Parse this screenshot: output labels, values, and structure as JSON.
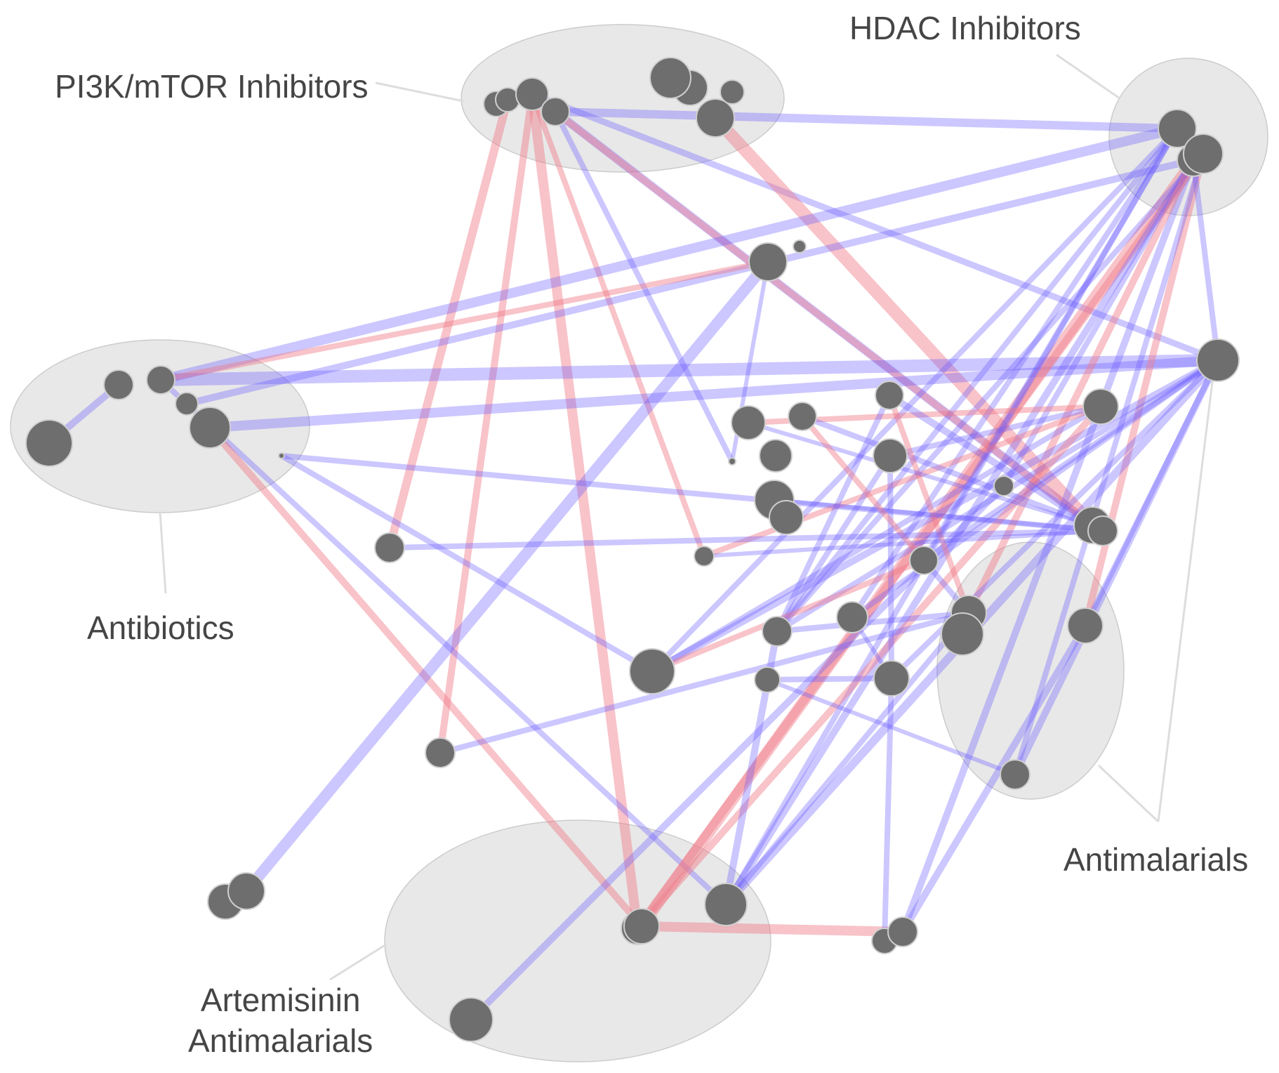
{
  "labels": {
    "pi3k": "PI3K/mTOR Inhibitors",
    "hdac": "HDAC Inhibitors",
    "antibiotics": "Antibiotics",
    "antimalarials": "Antimalarials",
    "artemisinin_line1": "Artemisinin",
    "artemisinin_line2": "Antimalarials"
  },
  "colors": {
    "cluster_fill": "#e8e8e8",
    "cluster_stroke": "#cccccc",
    "leader_line": "#dddddd",
    "node_fill": "#6e6e6e",
    "node_stroke": "#cfcfcf",
    "edge_positive": "#6a5cff",
    "edge_negative": "#f07a88",
    "label_text": "#454545"
  },
  "clusters": [
    {
      "id": "pi3k",
      "name": "PI3K/mTOR Inhibitors"
    },
    {
      "id": "hdac",
      "name": "HDAC Inhibitors"
    },
    {
      "id": "antibiotics",
      "name": "Antibiotics"
    },
    {
      "id": "antimalarials",
      "name": "Antimalarials"
    },
    {
      "id": "artemisinin",
      "name": "Artemisinin Antimalarials"
    }
  ],
  "edges_legend": {
    "positive_color": "blue",
    "negative_color": "red"
  }
}
